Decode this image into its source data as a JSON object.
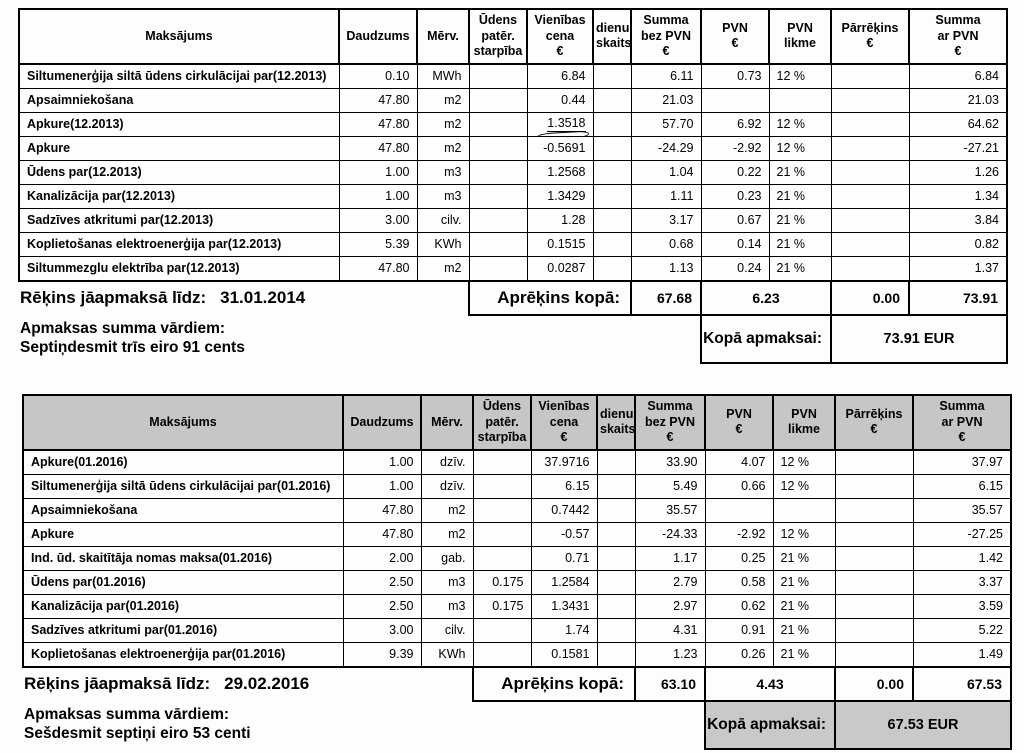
{
  "columns": [
    "Maksājums",
    "Daudzums",
    "Mērv.",
    "Ūdens\npatēr.\nstarpība",
    "Vienības\ncena\n€",
    "dienu\nskaits",
    "Summa\nbez PVN\n€",
    "PVN\n€",
    "PVN\nlikme",
    "Pārrēķins\n€",
    "Summa\nar PVN\n€"
  ],
  "invoice1": {
    "rows": [
      [
        "Siltumenerģija siltā ūdens cirkulācijai par(12.2013)",
        "0.10",
        "MWh",
        "",
        "6.84",
        "",
        "6.11",
        "0.73",
        "12 %",
        "",
        "6.84"
      ],
      [
        "Apsaimniekošana",
        "47.80",
        "m2",
        "",
        "0.44",
        "",
        "21.03",
        "",
        "",
        "",
        "21.03"
      ],
      [
        "Apkure(12.2013)",
        "47.80",
        "m2",
        "",
        "1.3518",
        "",
        "57.70",
        "6.92",
        "12 %",
        "",
        "64.62"
      ],
      [
        "Apkure",
        "47.80",
        "m2",
        "",
        "-0.5691",
        "",
        "-24.29",
        "-2.92",
        "12 %",
        "",
        "-27.21"
      ],
      [
        "Ūdens par(12.2013)",
        "1.00",
        "m3",
        "",
        "1.2568",
        "",
        "1.04",
        "0.22",
        "21 %",
        "",
        "1.26"
      ],
      [
        "Kanalizācija par(12.2013)",
        "1.00",
        "m3",
        "",
        "1.3429",
        "",
        "1.11",
        "0.23",
        "21 %",
        "",
        "1.34"
      ],
      [
        "Sadzīves atkritumi par(12.2013)",
        "3.00",
        "cilv.",
        "",
        "1.28",
        "",
        "3.17",
        "0.67",
        "21 %",
        "",
        "3.84"
      ],
      [
        "Koplietošanas elektroenerģija par(12.2013)",
        "5.39",
        "KWh",
        "",
        "0.1515",
        "",
        "0.68",
        "0.14",
        "21 %",
        "",
        "0.82"
      ],
      [
        "Siltummezglu elektrība par(12.2013)",
        "47.80",
        "m2",
        "",
        "0.0287",
        "",
        "1.13",
        "0.24",
        "21 %",
        "",
        "1.37"
      ]
    ],
    "marked_price_row": 2,
    "due_label": "Rēķins jāapmaksā līdz:",
    "due_date": "31.01.2014",
    "calc_label": "Aprēķins kopā:",
    "calc_sum_no_vat": "67.68",
    "calc_vat": "6.23",
    "calc_recalc": "0.00",
    "calc_sum_with_vat": "73.91",
    "words_label": "Apmaksas summa vārdiem:",
    "words_value": "Septiņdesmit trīs eiro 91 cents",
    "total_label": "Kopā apmaksai:",
    "total_value": "73.91 EUR"
  },
  "invoice2": {
    "rows": [
      [
        "Apkure(01.2016)",
        "1.00",
        "dzīv.",
        "",
        "37.9716",
        "",
        "33.90",
        "4.07",
        "12 %",
        "",
        "37.97"
      ],
      [
        "Siltumenerģija siltā ūdens cirkulācijai par(01.2016)",
        "1.00",
        "dzīv.",
        "",
        "6.15",
        "",
        "5.49",
        "0.66",
        "12 %",
        "",
        "6.15"
      ],
      [
        "Apsaimniekošana",
        "47.80",
        "m2",
        "",
        "0.7442",
        "",
        "35.57",
        "",
        "",
        "",
        "35.57"
      ],
      [
        "Apkure",
        "47.80",
        "m2",
        "",
        "-0.57",
        "",
        "-24.33",
        "-2.92",
        "12 %",
        "",
        "-27.25"
      ],
      [
        "Ind. ūd. skaitītāja nomas maksa(01.2016)",
        "2.00",
        "gab.",
        "",
        "0.71",
        "",
        "1.17",
        "0.25",
        "21 %",
        "",
        "1.42"
      ],
      [
        "Ūdens par(01.2016)",
        "2.50",
        "m3",
        "0.175",
        "1.2584",
        "",
        "2.79",
        "0.58",
        "21 %",
        "",
        "3.37"
      ],
      [
        "Kanalizācija par(01.2016)",
        "2.50",
        "m3",
        "0.175",
        "1.3431",
        "",
        "2.97",
        "0.62",
        "21 %",
        "",
        "3.59"
      ],
      [
        "Sadzīves atkritumi par(01.2016)",
        "3.00",
        "cilv.",
        "",
        "1.74",
        "",
        "4.31",
        "0.91",
        "21 %",
        "",
        "5.22"
      ],
      [
        "Koplietošanas elektroenerģija par(01.2016)",
        "9.39",
        "KWh",
        "",
        "0.1581",
        "",
        "1.23",
        "0.26",
        "21 %",
        "",
        "1.49"
      ]
    ],
    "marked_price_row": -1,
    "due_label": "Rēķins jāapmaksā līdz:",
    "due_date": "29.02.2016",
    "calc_label": "Aprēķins kopā:",
    "calc_sum_no_vat": "63.10",
    "calc_vat": "4.43",
    "calc_recalc": "0.00",
    "calc_sum_with_vat": "67.53",
    "words_label": "Apmaksas summa vārdiem:",
    "words_value": "Sešdesmit septiņi eiro 53 centi",
    "total_label": "Kopā apmaksai:",
    "total_value": "67.53 EUR"
  }
}
